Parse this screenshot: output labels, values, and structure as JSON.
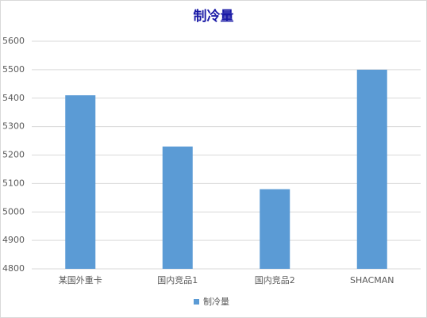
{
  "chart_data": {
    "type": "bar",
    "title": "制冷量",
    "categories": [
      "某国外重卡",
      "国内竞品1",
      "国内竞品2",
      "SHACMAN"
    ],
    "series": [
      {
        "name": "制冷量",
        "color": "#5b9bd5",
        "values": [
          5410,
          5230,
          5080,
          5500
        ]
      }
    ],
    "ylim": [
      4800,
      5600
    ],
    "yticks": [
      4800,
      4900,
      5000,
      5100,
      5200,
      5300,
      5400,
      5500,
      5600
    ],
    "grid": true,
    "legend": "bottom"
  }
}
